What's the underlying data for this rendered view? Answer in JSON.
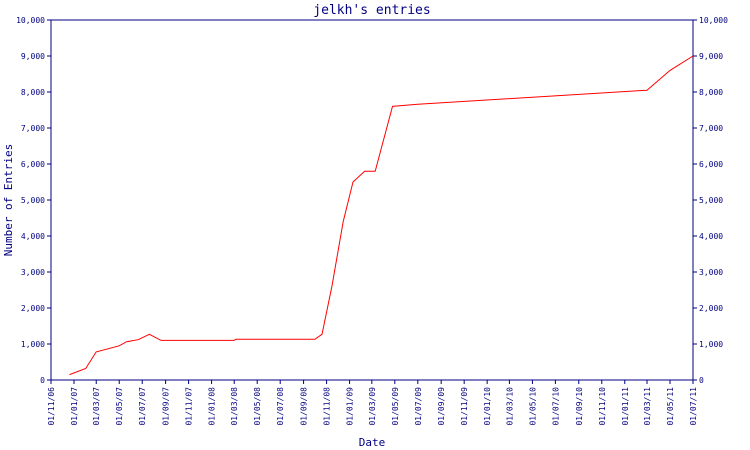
{
  "chart_data": {
    "type": "line",
    "title": "jelkh's entries",
    "xlabel": "Date",
    "ylabel": "Number of Entries",
    "ylim": [
      0,
      10000
    ],
    "y_ticks": [
      "0",
      "1,000",
      "2,000",
      "3,000",
      "4,000",
      "5,000",
      "6,000",
      "7,000",
      "8,000",
      "9,000",
      "10,000"
    ],
    "x_ticks": [
      "01/11/06",
      "01/01/07",
      "01/03/07",
      "01/05/07",
      "01/07/07",
      "01/09/07",
      "01/11/07",
      "01/01/08",
      "01/03/08",
      "01/05/08",
      "01/07/08",
      "01/09/08",
      "01/11/08",
      "01/01/09",
      "01/03/09",
      "01/05/09",
      "01/07/09",
      "01/09/09",
      "01/11/09",
      "01/01/10",
      "01/03/10",
      "01/05/10",
      "01/07/10",
      "01/09/10",
      "01/11/10",
      "01/01/11",
      "01/03/11",
      "01/05/11",
      "01/07/11"
    ],
    "grid": false,
    "colors": {
      "line": "#ff0000",
      "axis": "#000080"
    },
    "series": [
      {
        "points": [
          {
            "x": "2006-12-20",
            "y": 150
          },
          {
            "x": "2007-02-01",
            "y": 320
          },
          {
            "x": "2007-03-01",
            "y": 780
          },
          {
            "x": "2007-05-01",
            "y": 950
          },
          {
            "x": "2007-05-20",
            "y": 1060
          },
          {
            "x": "2007-06-20",
            "y": 1120
          },
          {
            "x": "2007-07-20",
            "y": 1270
          },
          {
            "x": "2007-08-20",
            "y": 1100
          },
          {
            "x": "2008-03-01",
            "y": 1100
          },
          {
            "x": "2008-03-05",
            "y": 1130
          },
          {
            "x": "2008-10-01",
            "y": 1130
          },
          {
            "x": "2008-10-20",
            "y": 1270
          },
          {
            "x": "2008-11-15",
            "y": 2600
          },
          {
            "x": "2008-12-15",
            "y": 4400
          },
          {
            "x": "2009-01-10",
            "y": 5500
          },
          {
            "x": "2009-02-10",
            "y": 5800
          },
          {
            "x": "2009-03-10",
            "y": 5800
          },
          {
            "x": "2009-04-25",
            "y": 7600
          },
          {
            "x": "2009-07-01",
            "y": 7660
          },
          {
            "x": "2011-03-01",
            "y": 8050
          },
          {
            "x": "2011-05-01",
            "y": 8600
          },
          {
            "x": "2011-07-01",
            "y": 9000
          }
        ]
      }
    ]
  }
}
